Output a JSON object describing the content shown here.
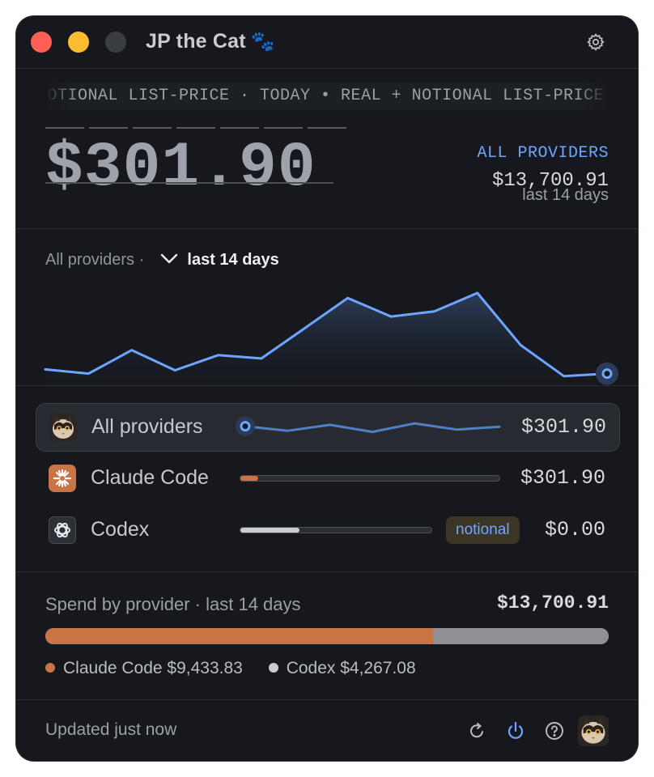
{
  "window": {
    "title": "JP the Cat",
    "title_emoji": "🐾"
  },
  "ticker": {
    "text": "NOTIONAL LIST-PRICE · TODAY  •  REAL + NOTIONAL LIST-PRICE"
  },
  "summary": {
    "today_amount": "$301.90",
    "all_providers_label": "ALL PROVIDERS",
    "all_providers_total": "$13,700.91",
    "all_providers_period": "last 14 days"
  },
  "chart_header": {
    "scope": "All providers ·",
    "period": "last 14 days"
  },
  "chart_data": {
    "type": "area",
    "x": [
      1,
      2,
      3,
      4,
      5,
      6,
      7,
      8,
      9,
      10,
      11,
      12,
      13,
      14
    ],
    "values": [
      0.15,
      0.1,
      0.38,
      0.14,
      0.32,
      0.28,
      0.64,
      1.0,
      0.78,
      0.84,
      1.06,
      0.44,
      0.07,
      0.1
    ],
    "title": "",
    "xlabel": "",
    "ylabel": "",
    "grid": false,
    "line_color": "#6ea6ff",
    "highlight_last_point": true
  },
  "providers": [
    {
      "name": "All providers",
      "amount": "$301.90",
      "selected": true,
      "trend": [
        0.6,
        0.2,
        0.72,
        0.1,
        0.85,
        0.3,
        0.55
      ]
    },
    {
      "name": "Claude Code",
      "amount": "$301.90",
      "share": 0.07,
      "color": "#c87447"
    },
    {
      "name": "Codex",
      "amount": "$0.00",
      "share": 0.31,
      "color": "#c9ccd2",
      "badge": "notional"
    }
  ],
  "spend": {
    "label": "Spend by provider · last 14 days",
    "total": "$13,700.91",
    "segments": [
      {
        "name": "Claude Code",
        "value": 9433.83,
        "display": "Claude Code $9,433.83",
        "color": "#c87447"
      },
      {
        "name": "Codex",
        "value": 4267.08,
        "display": "Codex $4,267.08",
        "color": "#c9ccd2"
      }
    ]
  },
  "footer": {
    "status": "Updated just now"
  },
  "colors": {
    "accent": "#6ea6ff",
    "claude": "#c87447",
    "codex": "#c9ccd2"
  }
}
